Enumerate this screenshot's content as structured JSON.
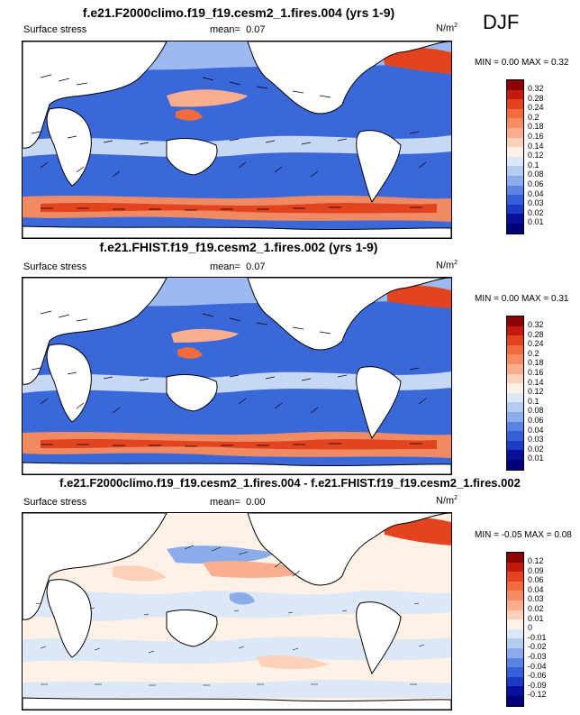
{
  "season_label": "DJF",
  "units_label": "N/m",
  "units_exp": "2",
  "panels": [
    {
      "title": "f.e21.F2000climo.f19_f19.cesm2_1.fires.004 (yrs 1-9)",
      "variable": "Surface stress",
      "mean_label": "mean=",
      "mean_value": "0.07",
      "minmax": "MIN =  0.00 MAX =  0.32",
      "legend_labels": [
        "0.32",
        "0.28",
        "0.24",
        "0.2",
        "0.18",
        "0.16",
        "0.14",
        "0.12",
        "0.1",
        "0.08",
        "0.06",
        "0.04",
        "0.03",
        "0.02",
        "0.01"
      ],
      "legend_colors": [
        "#8b0000",
        "#c41a0e",
        "#e34420",
        "#f26b3c",
        "#f78c62",
        "#fbae8e",
        "#fdd1b9",
        "#fff1e6",
        "#dce7f7",
        "#b4ccf0",
        "#8bacea",
        "#5a84e2",
        "#3460d8",
        "#1a3cc2",
        "#08109a",
        "#000078"
      ],
      "icon": "surface-stress-map-icon"
    },
    {
      "title": "f.e21.FHIST.f19_f19.cesm2_1.fires.002 (yrs 1-9)",
      "variable": "Surface stress",
      "mean_label": "mean=",
      "mean_value": "0.07",
      "minmax": "MIN =  0.00 MAX =  0.31",
      "legend_labels": [
        "0.32",
        "0.28",
        "0.24",
        "0.2",
        "0.18",
        "0.16",
        "0.14",
        "0.12",
        "0.1",
        "0.08",
        "0.06",
        "0.04",
        "0.03",
        "0.02",
        "0.01"
      ],
      "legend_colors": [
        "#8b0000",
        "#c41a0e",
        "#e34420",
        "#f26b3c",
        "#f78c62",
        "#fbae8e",
        "#fdd1b9",
        "#fff1e6",
        "#dce7f7",
        "#b4ccf0",
        "#8bacea",
        "#5a84e2",
        "#3460d8",
        "#1a3cc2",
        "#08109a",
        "#000078"
      ],
      "icon": "surface-stress-map-icon"
    },
    {
      "title": "f.e21.F2000climo.f19_f19.cesm2_1.fires.004 - f.e21.FHIST.f19_f19.cesm2_1.fires.002",
      "variable": "Surface stress",
      "mean_label": "mean=",
      "mean_value": "0.00",
      "minmax": "MIN = -0.05 MAX =  0.08",
      "legend_labels": [
        "0.12",
        "0.09",
        "0.06",
        "0.04",
        "0.03",
        "0.02",
        "0.01",
        "0",
        "-0.01",
        "-0.02",
        "-0.03",
        "-0.04",
        "-0.06",
        "-0.09",
        "-0.12"
      ],
      "legend_colors": [
        "#8b0000",
        "#c41a0e",
        "#e34420",
        "#f26b3c",
        "#f78c62",
        "#fbae8e",
        "#fdd1b9",
        "#fff1e6",
        "#dce7f7",
        "#b4ccf0",
        "#8bacea",
        "#5a84e2",
        "#3460d8",
        "#1a3cc2",
        "#08109a",
        "#000078"
      ],
      "icon": "difference-map-icon"
    }
  ]
}
